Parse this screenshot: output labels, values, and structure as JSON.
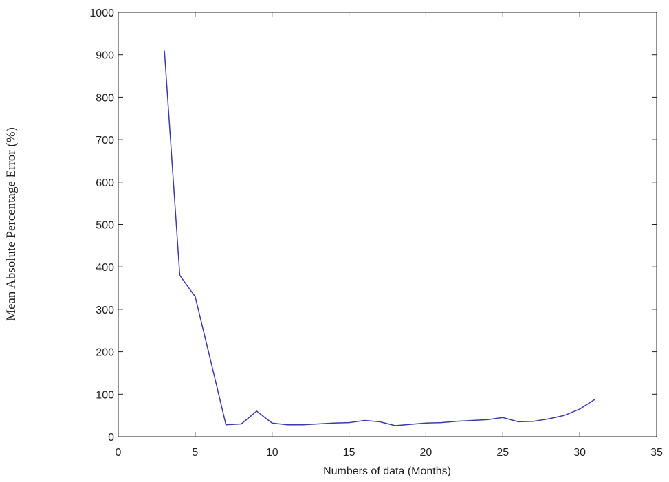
{
  "chart_data": {
    "type": "line",
    "x_label": "Numbers of data (Months)",
    "y_label": "Mean Absolute Percentage Error (%)",
    "x": [
      3,
      4,
      5,
      6,
      7,
      8,
      9,
      10,
      11,
      12,
      13,
      14,
      15,
      16,
      17,
      18,
      19,
      20,
      21,
      22,
      23,
      24,
      25,
      26,
      27,
      28,
      29,
      30,
      31
    ],
    "values": [
      910,
      380,
      330,
      180,
      28,
      30,
      60,
      32,
      28,
      28,
      30,
      32,
      33,
      38,
      35,
      26,
      29,
      32,
      33,
      36,
      38,
      40,
      45,
      35,
      36,
      42,
      50,
      65,
      88
    ],
    "color": "#3a3aa8",
    "xlim": [
      0,
      35
    ],
    "xticks": [
      0,
      5,
      10,
      15,
      20,
      25,
      30,
      35
    ],
    "ylim": [
      0,
      1000
    ],
    "yticks": [
      0,
      100,
      200,
      300,
      400,
      500,
      600,
      700,
      800,
      900,
      1000
    ],
    "grid": false
  }
}
